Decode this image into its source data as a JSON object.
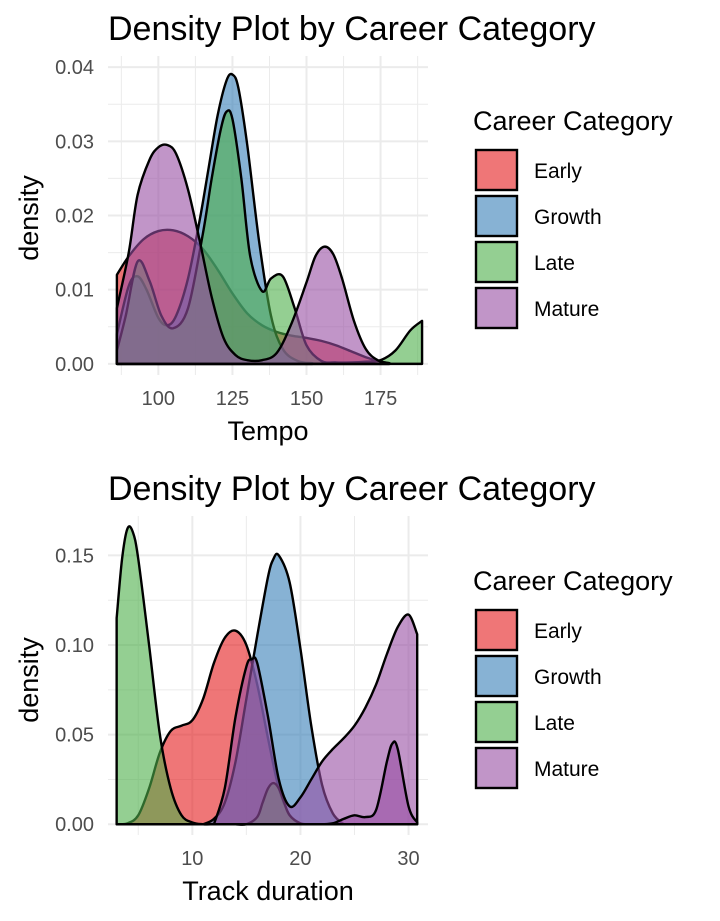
{
  "colors": {
    "Early": "#e41a1c",
    "Growth": "#377eb8",
    "Late": "#4daf4a",
    "Mature": "#984ea3"
  },
  "chart_data": [
    {
      "type": "area",
      "title": "Density Plot by Career Category",
      "xlabel": "Tempo",
      "ylabel": "density",
      "xlim": [
        83,
        191
      ],
      "ylim": [
        -0.0015,
        0.0415
      ],
      "x_ticks": [
        100,
        125,
        150,
        175
      ],
      "y_ticks": [
        0.0,
        0.01,
        0.02,
        0.03,
        0.04
      ],
      "x_tick_labels": [
        "100",
        "125",
        "150",
        "175"
      ],
      "y_tick_labels": [
        "0.00",
        "0.01",
        "0.02",
        "0.03",
        "0.04"
      ],
      "grid": true,
      "legend": {
        "title": "Career Category",
        "position": "right",
        "entries": [
          "Early",
          "Growth",
          "Late",
          "Mature"
        ]
      },
      "series": [
        {
          "name": "Early",
          "x": [
            86,
            90,
            95,
            100,
            105,
            110,
            115,
            120,
            125,
            130,
            135,
            140,
            145,
            150,
            155,
            160,
            165,
            170,
            175,
            178
          ],
          "y": [
            0.012,
            0.0145,
            0.0168,
            0.0179,
            0.018,
            0.0172,
            0.0155,
            0.0127,
            0.0095,
            0.0068,
            0.0052,
            0.0043,
            0.0038,
            0.0035,
            0.0031,
            0.0025,
            0.0017,
            0.0009,
            0.0003,
            0.0001
          ]
        },
        {
          "name": "Growth",
          "x": [
            86,
            90,
            93,
            96,
            100,
            103,
            106,
            110,
            114,
            117,
            120,
            123,
            125,
            127,
            130,
            134,
            138,
            142,
            147,
            152
          ],
          "y": [
            0.004,
            0.0105,
            0.0118,
            0.01,
            0.0062,
            0.0052,
            0.0065,
            0.0115,
            0.0195,
            0.0265,
            0.0335,
            0.0382,
            0.039,
            0.0372,
            0.0295,
            0.0165,
            0.0065,
            0.002,
            0.0004,
            0.0001
          ]
        },
        {
          "name": "Late",
          "x": [
            86,
            89,
            93,
            97,
            101,
            105,
            110,
            115,
            118,
            121,
            123,
            125,
            128,
            131,
            135,
            138,
            142,
            146,
            150,
            155,
            160,
            165,
            170,
            175,
            180,
            185,
            189
          ],
          "y": [
            0.0018,
            0.0065,
            0.0138,
            0.0112,
            0.0065,
            0.0048,
            0.0075,
            0.0175,
            0.025,
            0.0315,
            0.034,
            0.033,
            0.025,
            0.0145,
            0.0098,
            0.0115,
            0.0118,
            0.0075,
            0.0025,
            0.0004,
            0.0002,
            0.0002,
            0.0003,
            0.0005,
            0.0018,
            0.0045,
            0.0058
          ]
        },
        {
          "name": "Mature",
          "x": [
            86,
            90,
            93,
            97,
            100,
            103,
            106,
            110,
            114,
            118,
            122,
            126,
            130,
            135,
            140,
            145,
            150,
            153,
            156,
            159,
            162,
            166,
            170,
            174,
            178
          ],
          "y": [
            0.0075,
            0.015,
            0.0228,
            0.0275,
            0.0292,
            0.0295,
            0.0283,
            0.0235,
            0.0165,
            0.009,
            0.0035,
            0.0012,
            0.0005,
            0.0005,
            0.0015,
            0.0055,
            0.011,
            0.0145,
            0.0158,
            0.0148,
            0.0115,
            0.0058,
            0.002,
            0.0005,
            0.0001
          ]
        }
      ]
    },
    {
      "type": "area",
      "title": "Density Plot by Career Category",
      "xlabel": "Track duration",
      "ylabel": "density",
      "xlim": [
        2.2,
        31.8
      ],
      "ylim": [
        -0.006,
        0.172
      ],
      "x_ticks": [
        10,
        20,
        30
      ],
      "y_ticks": [
        0.0,
        0.05,
        0.1,
        0.15
      ],
      "x_tick_labels": [
        "10",
        "20",
        "30"
      ],
      "y_tick_labels": [
        "0.00",
        "0.05",
        "0.10",
        "0.15"
      ],
      "grid": true,
      "legend": {
        "title": "Career Category",
        "position": "right",
        "entries": [
          "Early",
          "Growth",
          "Late",
          "Mature"
        ]
      },
      "series": [
        {
          "name": "Early",
          "x": [
            3,
            4,
            5,
            6,
            7,
            8,
            9,
            10,
            11,
            12,
            13,
            14,
            15,
            16,
            17,
            18,
            19,
            20
          ],
          "y": [
            0.0,
            0.0005,
            0.005,
            0.02,
            0.04,
            0.052,
            0.055,
            0.058,
            0.07,
            0.09,
            0.104,
            0.108,
            0.1,
            0.078,
            0.048,
            0.02,
            0.005,
            0.0
          ]
        },
        {
          "name": "Growth",
          "x": [
            11,
            12,
            13,
            14,
            15,
            16,
            17,
            17.5,
            18,
            19,
            20,
            21,
            22,
            23,
            24
          ],
          "y": [
            0.0,
            0.003,
            0.012,
            0.035,
            0.07,
            0.105,
            0.138,
            0.148,
            0.15,
            0.135,
            0.098,
            0.055,
            0.022,
            0.006,
            0.0
          ]
        },
        {
          "name": "Late",
          "x": [
            3,
            3.5,
            4,
            4.5,
            5,
            6,
            7,
            8,
            9,
            10,
            11,
            12,
            13,
            14,
            15,
            16,
            16.5,
            17,
            17.5,
            18,
            18.5,
            19,
            20,
            21
          ],
          "y": [
            0.115,
            0.148,
            0.165,
            0.163,
            0.148,
            0.1,
            0.05,
            0.02,
            0.005,
            0.001,
            0.0,
            0.0,
            0.0,
            0.0,
            0.0,
            0.004,
            0.012,
            0.02,
            0.023,
            0.02,
            0.012,
            0.005,
            0.0005,
            0.0
          ]
        },
        {
          "name": "Mature",
          "x": [
            12,
            13,
            14,
            15,
            15.5,
            16,
            17,
            18,
            19,
            20,
            21,
            22,
            23,
            24,
            25,
            26,
            27,
            28,
            29,
            30,
            30.8
          ],
          "y": [
            0.0,
            0.02,
            0.06,
            0.088,
            0.092,
            0.09,
            0.06,
            0.025,
            0.01,
            0.015,
            0.025,
            0.035,
            0.042,
            0.048,
            0.055,
            0.065,
            0.078,
            0.095,
            0.11,
            0.117,
            0.106
          ]
        },
        {
          "name": "Mature",
          "x": [
            21,
            22,
            23,
            24,
            25,
            26,
            27,
            28,
            28.5,
            29,
            30,
            30.8
          ],
          "y": [
            0.0,
            0.0,
            0.0005,
            0.003,
            0.005,
            0.004,
            0.008,
            0.035,
            0.045,
            0.042,
            0.01,
            0.001
          ]
        }
      ]
    }
  ]
}
